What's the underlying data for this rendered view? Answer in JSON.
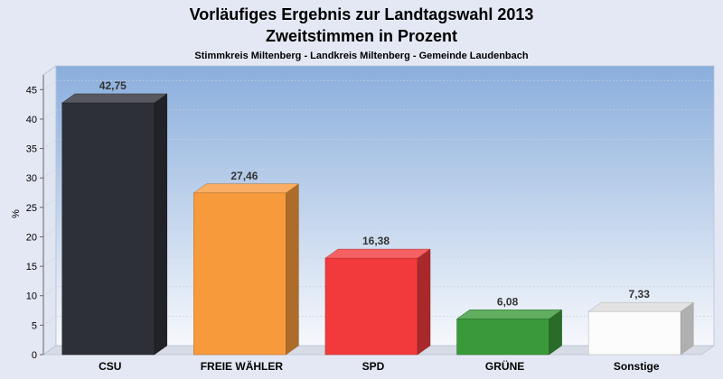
{
  "chart_data": {
    "type": "bar",
    "title": "Vorläufiges Ergebnis zur Landtagswahl 2013",
    "subtitle": "Zweitstimmen in Prozent",
    "subtitle2": "Stimmkreis Miltenberg - Landkreis Miltenberg - Gemeinde Laudenbach",
    "ylabel": "%",
    "ylim": [
      0,
      47.5
    ],
    "yticks": [
      "0",
      "5",
      "10",
      "15",
      "20",
      "25",
      "30",
      "35",
      "40",
      "45"
    ],
    "grid": true,
    "categories": [
      "CSU",
      "FREIE WÄHLER",
      "SPD",
      "GRÜNE",
      "Sonstige"
    ],
    "values": [
      42.75,
      27.46,
      16.38,
      6.08,
      7.33
    ],
    "value_labels": [
      "42,75",
      "27,46",
      "16,38",
      "6,08",
      "7,33"
    ],
    "colors": [
      "#2e3038",
      "#f79a3c",
      "#f23a3c",
      "#3a9a3a",
      "#fcfcfc"
    ]
  }
}
